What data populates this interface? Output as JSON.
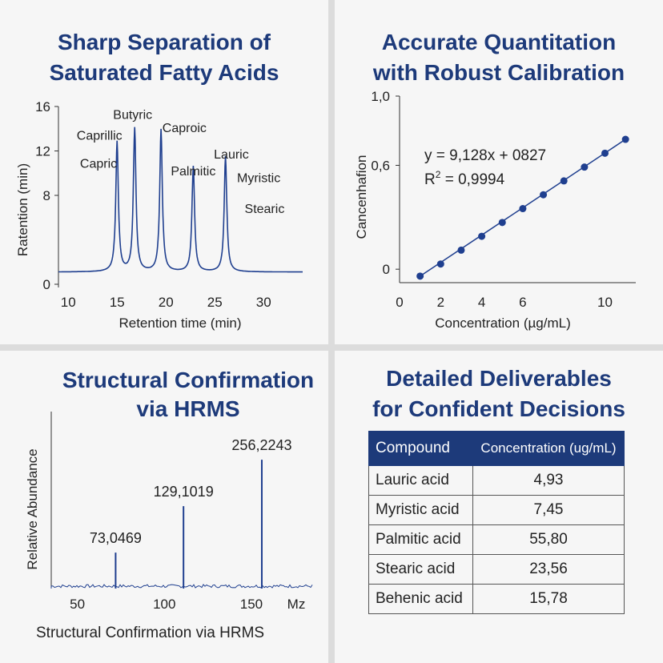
{
  "panels": {
    "chromatogram": {
      "title_line1": "Sharp Separation of",
      "title_line2": "Saturated Fatty Acids"
    },
    "calibration": {
      "title_line1": "Accurate Quantitation",
      "title_line2": "with Robust Calibration",
      "equation": "y = 9,128x + 0827",
      "r2_label": "R",
      "r2_sup": "2",
      "r2_value": " = 0,9994"
    },
    "hrms": {
      "title_line1": "Structural Confirmation",
      "title_line2": "via HRMS",
      "caption": "Structural Confirmation via HRMS"
    },
    "deliverables": {
      "title_line1": "Detailed Deliverables",
      "title_line2": "for Confident Decisions",
      "header": [
        "Compound",
        "Concentration (ug/mL)"
      ],
      "rows": [
        [
          "Lauric acid",
          "4,93"
        ],
        [
          "Myristic acid",
          "7,45"
        ],
        [
          "Palmitic acid",
          "55,80"
        ],
        [
          "Stearic acid",
          "23,56"
        ],
        [
          "Behenic acid",
          "15,78"
        ]
      ]
    }
  },
  "colors": {
    "accent": "#1d3a7a",
    "line": "#1f3f8f"
  },
  "chart_data": [
    {
      "type": "line",
      "title": "Sharp Separation of Saturated Fatty Acids",
      "xlabel": "Retention time (min)",
      "ylabel": "Ratention (min)",
      "xlim": [
        9,
        34
      ],
      "ylim": [
        0,
        16
      ],
      "xticks": [
        "10",
        "15",
        "20",
        "25",
        "30"
      ],
      "yticks": [
        "0",
        "8",
        "12",
        "16"
      ],
      "baseline": 1.1,
      "peaks": [
        {
          "x": 15.0,
          "y": 12.8
        },
        {
          "x": 16.8,
          "y": 14.0
        },
        {
          "x": 19.5,
          "y": 13.9
        },
        {
          "x": 22.8,
          "y": 10.6
        },
        {
          "x": 26.1,
          "y": 11.5
        }
      ],
      "labels": [
        {
          "text": "Capric",
          "x": 13.1,
          "y": 10.5
        },
        {
          "text": "Caprillic",
          "x": 13.2,
          "y": 13.0
        },
        {
          "text": "Butyric",
          "x": 16.6,
          "y": 14.9
        },
        {
          "text": "Caproic",
          "x": 21.9,
          "y": 13.7
        },
        {
          "text": "Palmitic",
          "x": 22.8,
          "y": 9.8
        },
        {
          "text": "Lauric",
          "x": 26.7,
          "y": 11.3
        },
        {
          "text": "Myristic",
          "x": 29.5,
          "y": 9.2
        },
        {
          "text": "Stearic",
          "x": 30.1,
          "y": 6.4
        }
      ]
    },
    {
      "type": "scatter",
      "title": "Accurate Quantitation with Robust Calibration",
      "xlabel": "Concentration (µg/mL)",
      "ylabel": "Cancenhafion",
      "xlim": [
        0,
        11.5
      ],
      "ylim": [
        -0.05,
        1.0
      ],
      "xticks": [
        "0",
        "2",
        "4",
        "6",
        "10"
      ],
      "yticks": [
        "0",
        "0,6",
        "1,0"
      ],
      "x": [
        1,
        2,
        3,
        4,
        5,
        6,
        7,
        8,
        9,
        10,
        11
      ],
      "y": [
        -0.04,
        0.03,
        0.11,
        0.19,
        0.27,
        0.35,
        0.43,
        0.51,
        0.59,
        0.67,
        0.75
      ],
      "fit_line": true
    },
    {
      "type": "bar",
      "title": "Structural Confirmation via HRMS",
      "xlabel": "Mz",
      "ylabel": "Relative Abundance",
      "xlim": [
        35,
        185
      ],
      "ylim": [
        0,
        100
      ],
      "xticks": [
        "50",
        "100",
        "150"
      ],
      "peaks": [
        {
          "mz": 72,
          "abundance": 24,
          "label": "73,0469"
        },
        {
          "mz": 111,
          "abundance": 55,
          "label": "129,1019"
        },
        {
          "mz": 156,
          "abundance": 86,
          "label": "256,2243"
        }
      ]
    }
  ]
}
